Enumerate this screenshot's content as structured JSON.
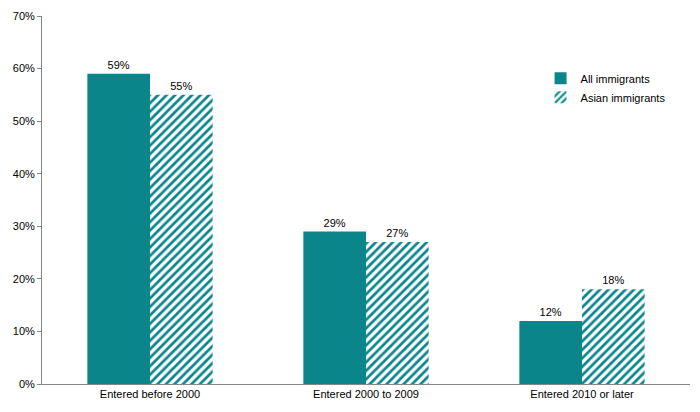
{
  "chart_data": {
    "type": "bar",
    "categories": [
      "Entered before 2000",
      "Entered 2000 to 2009",
      "Entered 2010 or later"
    ],
    "series": [
      {
        "name": "All immigrants",
        "color": "#0a868b",
        "marker": "solid",
        "values": [
          59,
          29,
          12
        ],
        "value_labels": [
          "59%",
          "29%",
          "12%"
        ]
      },
      {
        "name": "Asian immigrants",
        "color": "#0a868b",
        "marker": "hatched",
        "values": [
          55,
          27,
          18
        ],
        "value_labels": [
          "55%",
          "27%",
          "18%"
        ]
      }
    ],
    "ylim": [
      0,
      70
    ],
    "yticks": [
      {
        "value": 0,
        "label": "0%"
      },
      {
        "value": 10,
        "label": "10%"
      },
      {
        "value": 20,
        "label": "20%"
      },
      {
        "value": 30,
        "label": "30%"
      },
      {
        "value": 40,
        "label": "40%"
      },
      {
        "value": 50,
        "label": "50%"
      },
      {
        "value": 60,
        "label": "60%"
      },
      {
        "value": 70,
        "label": "70%"
      }
    ],
    "grid": false,
    "data_labels": true,
    "legend": "top-right"
  }
}
